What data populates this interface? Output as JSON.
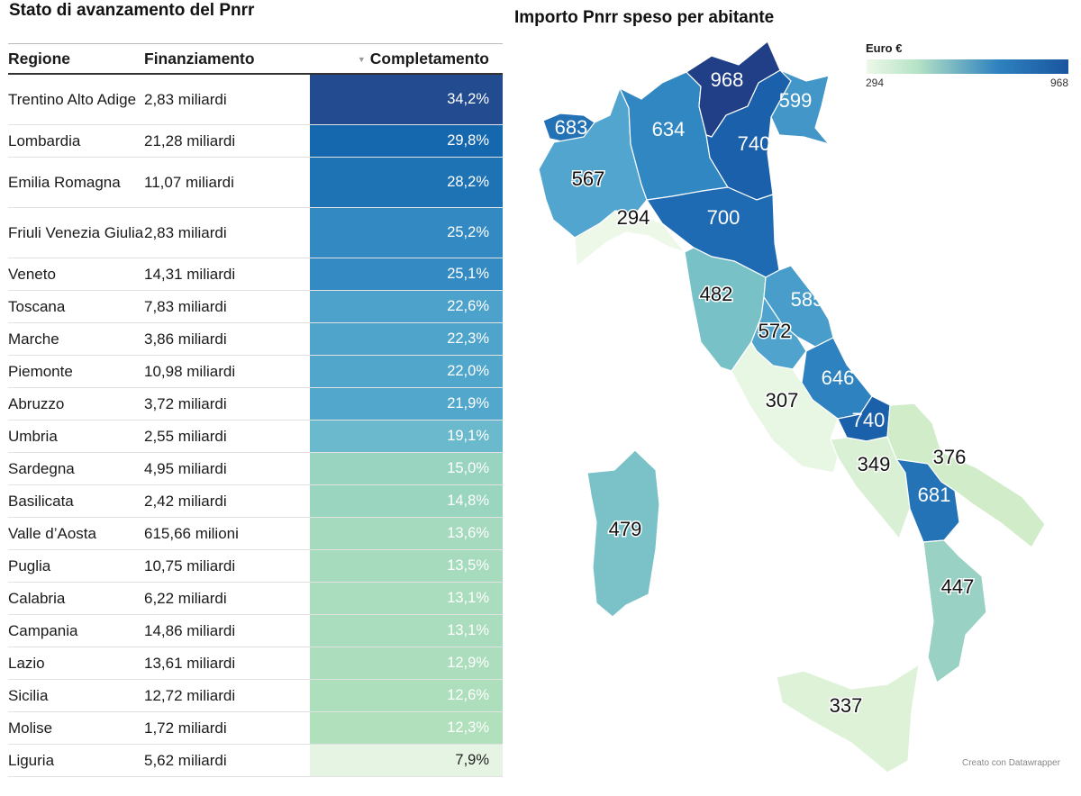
{
  "left_title": "Stato di avanzamento del Pnrr",
  "right_title": "Importo Pnrr speso per abitante",
  "table": {
    "headers": {
      "regione": "Regione",
      "finanziamento": "Finanziamento",
      "completamento": "Completamento",
      "sort_icon": "▼"
    },
    "rows": [
      {
        "regione": "Trentino Alto Adige",
        "finanziamento": "2,83 miliardi",
        "completamento": "34,2%",
        "value": 34.2,
        "lines": 2
      },
      {
        "regione": "Lombardia",
        "finanziamento": "21,28 miliardi",
        "completamento": "29,8%",
        "value": 29.8,
        "lines": 1
      },
      {
        "regione": "Emilia Romagna",
        "finanziamento": "11,07 miliardi",
        "completamento": "28,2%",
        "value": 28.2,
        "lines": 2
      },
      {
        "regione": "Friuli Venezia Giulia",
        "finanziamento": "2,83 miliardi",
        "completamento": "25,2%",
        "value": 25.2,
        "lines": 2
      },
      {
        "regione": "Veneto",
        "finanziamento": "14,31 miliardi",
        "completamento": "25,1%",
        "value": 25.1,
        "lines": 1
      },
      {
        "regione": "Toscana",
        "finanziamento": "7,83 miliardi",
        "completamento": "22,6%",
        "value": 22.6,
        "lines": 1
      },
      {
        "regione": "Marche",
        "finanziamento": "3,86 miliardi",
        "completamento": "22,3%",
        "value": 22.3,
        "lines": 1
      },
      {
        "regione": "Piemonte",
        "finanziamento": "10,98 miliardi",
        "completamento": "22,0%",
        "value": 22.0,
        "lines": 1
      },
      {
        "regione": "Abruzzo",
        "finanziamento": "3,72 miliardi",
        "completamento": "21,9%",
        "value": 21.9,
        "lines": 1
      },
      {
        "regione": "Umbria",
        "finanziamento": "2,55 miliardi",
        "completamento": "19,1%",
        "value": 19.1,
        "lines": 1
      },
      {
        "regione": "Sardegna",
        "finanziamento": "4,95 miliardi",
        "completamento": "15,0%",
        "value": 15.0,
        "lines": 1
      },
      {
        "regione": "Basilicata",
        "finanziamento": "2,42 miliardi",
        "completamento": "14,8%",
        "value": 14.8,
        "lines": 1
      },
      {
        "regione": "Valle d’Aosta",
        "finanziamento": "615,66 milioni",
        "completamento": "13,6%",
        "value": 13.6,
        "lines": 1
      },
      {
        "regione": "Puglia",
        "finanziamento": "10,75 miliardi",
        "completamento": "13,5%",
        "value": 13.5,
        "lines": 1
      },
      {
        "regione": "Calabria",
        "finanziamento": "6,22 miliardi",
        "completamento": "13,1%",
        "value": 13.1,
        "lines": 1
      },
      {
        "regione": "Campania",
        "finanziamento": "14,86 miliardi",
        "completamento": "13,1%",
        "value": 13.1,
        "lines": 1
      },
      {
        "regione": "Lazio",
        "finanziamento": "13,61 miliardi",
        "completamento": "12,9%",
        "value": 12.9,
        "lines": 1
      },
      {
        "regione": "Sicilia",
        "finanziamento": "12,72 miliardi",
        "completamento": "12,6%",
        "value": 12.6,
        "lines": 1
      },
      {
        "regione": "Molise",
        "finanziamento": "1,72 miliardi",
        "completamento": "12,3%",
        "value": 12.3,
        "lines": 1
      },
      {
        "regione": "Liguria",
        "finanziamento": "5,62 miliardi",
        "completamento": "7,9%",
        "value": 7.9,
        "lines": 1
      }
    ]
  },
  "legend": {
    "title": "Euro €",
    "min": "294",
    "max": "968"
  },
  "credit": "Creato con Datawrapper",
  "chart_data": {
    "type": "choropleth",
    "title": "Importo Pnrr speso per abitante",
    "unit": "Euro €",
    "range": [
      294,
      968
    ],
    "regions": [
      {
        "name": "Valle d’Aosta",
        "value": 683
      },
      {
        "name": "Piemonte",
        "value": 567
      },
      {
        "name": "Liguria",
        "value": 294
      },
      {
        "name": "Lombardia",
        "value": 634
      },
      {
        "name": "Trentino Alto Adige",
        "value": 968
      },
      {
        "name": "Veneto",
        "value": 740
      },
      {
        "name": "Friuli Venezia Giulia",
        "value": 599
      },
      {
        "name": "Emilia Romagna",
        "value": 700
      },
      {
        "name": "Toscana",
        "value": 482
      },
      {
        "name": "Marche",
        "value": 585
      },
      {
        "name": "Umbria",
        "value": 572
      },
      {
        "name": "Lazio",
        "value": 307
      },
      {
        "name": "Abruzzo",
        "value": 646
      },
      {
        "name": "Molise",
        "value": 740
      },
      {
        "name": "Campania",
        "value": 349
      },
      {
        "name": "Puglia",
        "value": 376
      },
      {
        "name": "Basilicata",
        "value": 681
      },
      {
        "name": "Calabria",
        "value": 447
      },
      {
        "name": "Sicilia",
        "value": 337
      },
      {
        "name": "Sardegna",
        "value": 479
      }
    ]
  }
}
